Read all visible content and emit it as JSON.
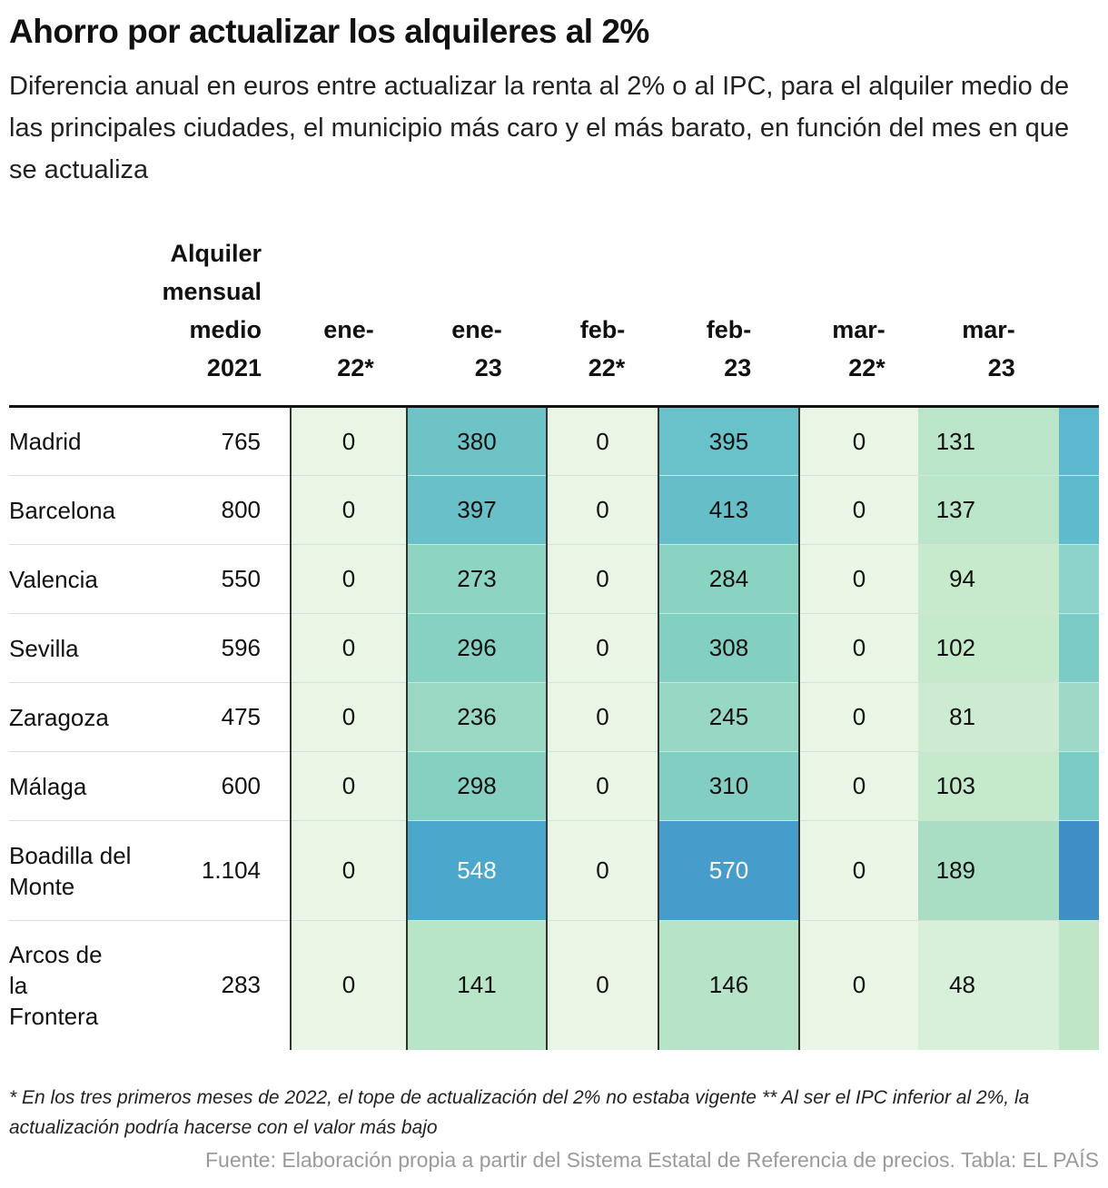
{
  "title": "Ahorro por actualizar los alquileres al 2%",
  "subtitle": "Diferencia anual en euros entre actualizar la renta al 2% o al IPC, para el alquiler medio de las principales ciudades, el municipio más caro y el más barato, en función del mes en que se actualiza",
  "table": {
    "rent_header_lines": [
      "Alquiler",
      "mensual",
      "medio",
      "2021"
    ],
    "month_headers": [
      [
        "ene-",
        "22*"
      ],
      [
        "ene-",
        "23"
      ],
      [
        "feb-",
        "22*"
      ],
      [
        "feb-",
        "23"
      ],
      [
        "mar-",
        "22*"
      ],
      [
        "mar-",
        "23"
      ]
    ],
    "rows": [
      {
        "city": "Madrid",
        "rent": "765",
        "values": [
          "0",
          "380",
          "0",
          "395",
          "0",
          "131"
        ]
      },
      {
        "city": "Barcelona",
        "rent": "800",
        "values": [
          "0",
          "397",
          "0",
          "413",
          "0",
          "137"
        ]
      },
      {
        "city": "Valencia",
        "rent": "550",
        "values": [
          "0",
          "273",
          "0",
          "284",
          "0",
          "94"
        ]
      },
      {
        "city": "Sevilla",
        "rent": "596",
        "values": [
          "0",
          "296",
          "0",
          "308",
          "0",
          "102"
        ]
      },
      {
        "city": "Zaragoza",
        "rent": "475",
        "values": [
          "0",
          "236",
          "0",
          "245",
          "0",
          "81"
        ]
      },
      {
        "city": "Málaga",
        "rent": "600",
        "values": [
          "0",
          "298",
          "0",
          "310",
          "0",
          "103"
        ]
      },
      {
        "city": "Boadilla del Monte",
        "rent": "1.104",
        "values": [
          "0",
          "548",
          "0",
          "570",
          "0",
          "189"
        ]
      },
      {
        "city": "Arcos de la Frontera",
        "rent": "283",
        "values": [
          "0",
          "141",
          "0",
          "146",
          "0",
          "48"
        ]
      }
    ],
    "extra_column_colors": [
      "#5db8cf",
      "#5fbacd",
      "#8dd3c9",
      "#7ccbc6",
      "#9dd9c6",
      "#7ccbc6",
      "#3f8fc5",
      "#c0e6c8"
    ]
  },
  "chart_data": {
    "type": "table",
    "title": "Ahorro por actualizar los alquileres al 2%",
    "columns": [
      "Alquiler mensual medio 2021",
      "ene-22*",
      "ene-23",
      "feb-22*",
      "feb-23",
      "mar-22*",
      "mar-23"
    ],
    "rows": [
      "Madrid",
      "Barcelona",
      "Valencia",
      "Sevilla",
      "Zaragoza",
      "Málaga",
      "Boadilla del Monte",
      "Arcos de la Frontera"
    ],
    "values": [
      [
        765,
        0,
        380,
        0,
        395,
        0,
        131
      ],
      [
        800,
        0,
        397,
        0,
        413,
        0,
        137
      ],
      [
        550,
        0,
        273,
        0,
        284,
        0,
        94
      ],
      [
        596,
        0,
        296,
        0,
        308,
        0,
        102
      ],
      [
        475,
        0,
        236,
        0,
        245,
        0,
        81
      ],
      [
        600,
        0,
        298,
        0,
        310,
        0,
        103
      ],
      [
        1104,
        0,
        548,
        0,
        570,
        0,
        189
      ],
      [
        283,
        0,
        141,
        0,
        146,
        0,
        48
      ]
    ],
    "color_scale": {
      "low": "#e9f6e6",
      "mid": "#8ed4c4",
      "high": "#4ba6cc",
      "max": "570"
    }
  },
  "footnote": "* En los tres primeros meses de 2022, el tope de actualización del 2% no estaba vigente ** Al ser el IPC inferior al 2%, la actualización podría hacerse con el valor más bajo",
  "source": "Fuente: Elaboración propia a partir del Sistema Estatal de Referencia de precios. Tabla: EL PAÍS"
}
